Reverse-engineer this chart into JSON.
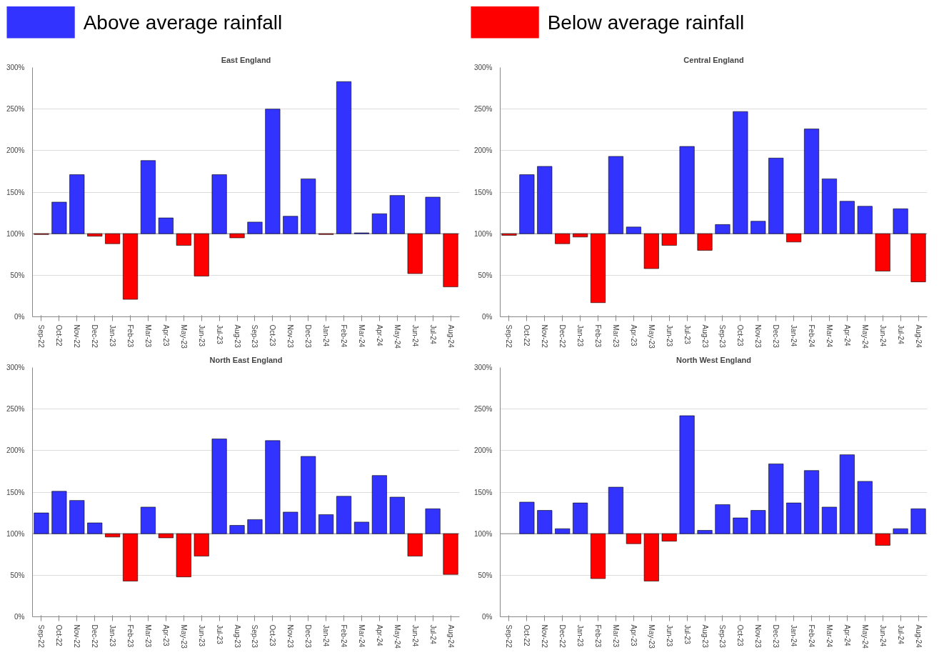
{
  "chart_data": [
    {
      "type": "bar",
      "title": "East England",
      "legend": "top",
      "grid": "y",
      "categories": [
        "Sep-22",
        "Oct-22",
        "Nov-22",
        "Dec-22",
        "Jan-23",
        "Feb-23",
        "Mar-23",
        "Apr-23",
        "May-23",
        "Jun-23",
        "Jul-23",
        "Aug-23",
        "Sep-23",
        "Oct-23",
        "Nov-23",
        "Dec-23",
        "Jan-24",
        "Feb-24",
        "Mar-24",
        "Apr-24",
        "May-24",
        "Jun-24",
        "Jul-24",
        "Aug-24"
      ],
      "ref_lines": [
        {
          "axis": "y",
          "value": 100,
          "color": "#888888"
        }
      ],
      "ylim": [
        0,
        300
      ],
      "yticks": [
        {
          "value": 0,
          "label": "0%"
        },
        {
          "value": 50,
          "label": "50%"
        },
        {
          "value": 100,
          "label": "100%"
        },
        {
          "value": 150,
          "label": "150%"
        },
        {
          "value": 200,
          "label": "200%"
        },
        {
          "value": 250,
          "label": "250%"
        },
        {
          "value": 300,
          "label": "300%"
        }
      ],
      "series": [
        {
          "name": "Above average rainfall",
          "color": "#3333ff",
          "base": [
            null,
            100,
            100,
            null,
            null,
            null,
            100,
            100,
            null,
            null,
            100,
            null,
            100,
            100,
            100,
            100,
            null,
            100,
            100,
            100,
            100,
            null,
            100,
            null
          ],
          "values": [
            null,
            38,
            71,
            null,
            null,
            null,
            88,
            19,
            null,
            null,
            71,
            null,
            14,
            150,
            21,
            66,
            null,
            183,
            1,
            24,
            46,
            null,
            44,
            null
          ]
        },
        {
          "name": "Below average rainfall",
          "color": "#ff0000",
          "base": [
            100,
            null,
            null,
            100,
            100,
            100,
            null,
            null,
            100,
            100,
            null,
            100,
            null,
            null,
            null,
            null,
            100,
            null,
            null,
            null,
            null,
            100,
            null,
            100
          ],
          "values": [
            -1,
            null,
            null,
            -3,
            -12,
            -79,
            null,
            null,
            -14,
            -51,
            null,
            -5,
            null,
            null,
            null,
            null,
            -1,
            null,
            null,
            null,
            null,
            -48,
            null,
            -64
          ]
        }
      ]
    },
    {
      "type": "bar",
      "title": "Central England",
      "grid": "y",
      "categories": [
        "Sep-22",
        "Oct-22",
        "Nov-22",
        "Dec-22",
        "Jan-23",
        "Feb-23",
        "Mar-23",
        "Apr-23",
        "May-23",
        "Jun-23",
        "Jul-23",
        "Aug-23",
        "Sep-23",
        "Oct-23",
        "Nov-23",
        "Dec-23",
        "Jan-24",
        "Feb-24",
        "Mar-24",
        "Apr-24",
        "May-24",
        "Jun-24",
        "Jul-24",
        "Aug-24"
      ],
      "ref_lines": [
        {
          "axis": "y",
          "value": 100,
          "color": "#888888"
        }
      ],
      "ylim": [
        0,
        300
      ],
      "yticks": [
        {
          "value": 0,
          "label": "0%"
        },
        {
          "value": 50,
          "label": "50%"
        },
        {
          "value": 100,
          "label": "100%"
        },
        {
          "value": 150,
          "label": "150%"
        },
        {
          "value": 200,
          "label": "200%"
        },
        {
          "value": 250,
          "label": "250%"
        },
        {
          "value": 300,
          "label": "300%"
        }
      ],
      "series": [
        {
          "color": "#3333ff",
          "base": [
            null,
            100,
            100,
            null,
            null,
            null,
            100,
            100,
            null,
            null,
            100,
            null,
            100,
            100,
            100,
            100,
            null,
            100,
            100,
            100,
            100,
            null,
            100,
            null
          ],
          "values": [
            null,
            71,
            81,
            null,
            null,
            null,
            93,
            8,
            null,
            null,
            105,
            null,
            11,
            147,
            15,
            91,
            null,
            126,
            66,
            39,
            33,
            null,
            30,
            null
          ]
        },
        {
          "color": "#ff0000",
          "base": [
            100,
            null,
            null,
            100,
            100,
            100,
            null,
            null,
            100,
            100,
            null,
            100,
            null,
            null,
            null,
            null,
            100,
            null,
            null,
            null,
            null,
            100,
            null,
            100
          ],
          "values": [
            -2,
            null,
            null,
            -12,
            -4,
            -83,
            null,
            null,
            -42,
            -14,
            null,
            -20,
            null,
            null,
            null,
            null,
            -10,
            null,
            null,
            null,
            null,
            -45,
            null,
            -58
          ]
        }
      ]
    },
    {
      "type": "bar",
      "title": "North East England",
      "grid": "y",
      "categories": [
        "Sep-22",
        "Oct-22",
        "Nov-22",
        "Dec-22",
        "Jan-23",
        "Feb-23",
        "Mar-23",
        "Apr-23",
        "May-23",
        "Jun-23",
        "Jul-23",
        "Aug-23",
        "Sep-23",
        "Oct-23",
        "Nov-23",
        "Dec-23",
        "Jan-24",
        "Feb-24",
        "Mar-24",
        "Apr-24",
        "May-24",
        "Jun-24",
        "Jul-24",
        "Aug-24"
      ],
      "ref_lines": [
        {
          "axis": "y",
          "value": 100,
          "color": "#888888"
        }
      ],
      "ylim": [
        0,
        300
      ],
      "yticks": [
        {
          "value": 0,
          "label": "0%"
        },
        {
          "value": 50,
          "label": "50%"
        },
        {
          "value": 100,
          "label": "100%"
        },
        {
          "value": 150,
          "label": "150%"
        },
        {
          "value": 200,
          "label": "200%"
        },
        {
          "value": 250,
          "label": "250%"
        },
        {
          "value": 300,
          "label": "300%"
        }
      ],
      "series": [
        {
          "color": "#3333ff",
          "base": [
            100,
            100,
            100,
            100,
            null,
            null,
            100,
            null,
            null,
            null,
            100,
            100,
            100,
            100,
            100,
            100,
            100,
            100,
            100,
            100,
            100,
            null,
            100,
            null
          ],
          "values": [
            25,
            51,
            40,
            13,
            null,
            null,
            32,
            null,
            null,
            null,
            114,
            10,
            17,
            112,
            26,
            93,
            23,
            45,
            14,
            70,
            44,
            null,
            30,
            null
          ]
        },
        {
          "color": "#ff0000",
          "base": [
            null,
            null,
            null,
            null,
            100,
            100,
            null,
            100,
            100,
            100,
            null,
            null,
            null,
            null,
            null,
            null,
            null,
            null,
            null,
            null,
            null,
            100,
            null,
            100
          ],
          "values": [
            null,
            null,
            null,
            null,
            -4,
            -57,
            null,
            -5,
            -52,
            -27,
            null,
            null,
            null,
            null,
            null,
            null,
            null,
            null,
            null,
            null,
            null,
            -27,
            null,
            -49
          ]
        }
      ]
    },
    {
      "type": "bar",
      "title": "North West England",
      "grid": "y",
      "categories": [
        "Sep-22",
        "Oct-22",
        "Nov-22",
        "Dec-22",
        "Jan-23",
        "Feb-23",
        "Mar-23",
        "Apr-23",
        "May-23",
        "Jun-23",
        "Jul-23",
        "Aug-23",
        "Sep-23",
        "Oct-23",
        "Nov-23",
        "Dec-23",
        "Jan-24",
        "Feb-24",
        "Mar-24",
        "Apr-24",
        "May-24",
        "Jun-24",
        "Jul-24",
        "Aug-24"
      ],
      "ref_lines": [
        {
          "axis": "y",
          "value": 100,
          "color": "#888888"
        }
      ],
      "ylim": [
        0,
        300
      ],
      "yticks": [
        {
          "value": 0,
          "label": "0%"
        },
        {
          "value": 50,
          "label": "50%"
        },
        {
          "value": 100,
          "label": "100%"
        },
        {
          "value": 150,
          "label": "150%"
        },
        {
          "value": 200,
          "label": "200%"
        },
        {
          "value": 250,
          "label": "250%"
        },
        {
          "value": 300,
          "label": "300%"
        }
      ],
      "series": [
        {
          "color": "#3333ff",
          "base": [
            null,
            100,
            100,
            100,
            100,
            null,
            100,
            null,
            null,
            null,
            100,
            100,
            100,
            100,
            100,
            100,
            100,
            100,
            100,
            100,
            100,
            null,
            100,
            100
          ],
          "values": [
            null,
            38,
            28,
            6,
            37,
            null,
            56,
            null,
            null,
            null,
            142,
            4,
            35,
            19,
            28,
            84,
            37,
            76,
            32,
            95,
            63,
            null,
            6,
            30
          ]
        },
        {
          "color": "#ff0000",
          "base": [
            null,
            null,
            null,
            null,
            null,
            100,
            null,
            100,
            100,
            100,
            null,
            null,
            null,
            null,
            null,
            null,
            null,
            null,
            null,
            null,
            null,
            100,
            null,
            null
          ],
          "values": [
            null,
            null,
            null,
            null,
            null,
            -54,
            null,
            -12,
            -57,
            -9,
            null,
            null,
            null,
            null,
            null,
            null,
            null,
            null,
            null,
            null,
            null,
            -14,
            null,
            null
          ]
        }
      ]
    }
  ]
}
